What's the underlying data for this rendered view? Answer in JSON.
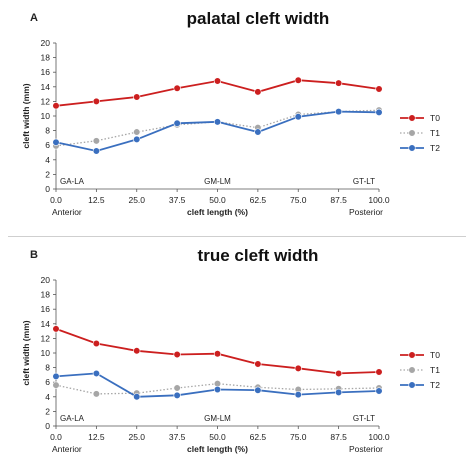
{
  "chart_data": [
    {
      "type": "line",
      "panel_letter": "A",
      "title": "palatal cleft width",
      "xlabel": "cleft length (%)",
      "ylabel": "cleft width (mm)",
      "x": [
        0.0,
        12.5,
        25.0,
        37.5,
        50.0,
        62.5,
        75.0,
        87.5,
        100.0
      ],
      "x_tick_labels": [
        "0.0",
        "12.5",
        "25.0",
        "37.5",
        "50.0",
        "62.5",
        "75.0",
        "87.5",
        "100.0"
      ],
      "ylim": [
        0,
        20
      ],
      "y_ticks": [
        "0",
        "2",
        "4",
        "6",
        "8",
        "10",
        "12",
        "14",
        "16",
        "18",
        "20"
      ],
      "grid": false,
      "legend": "right",
      "series": [
        {
          "name": "T0",
          "color": "#cc1f1f",
          "style": "solid",
          "values": [
            11.4,
            12.0,
            12.6,
            13.8,
            14.8,
            13.3,
            14.9,
            14.5,
            13.7
          ]
        },
        {
          "name": "T1",
          "color": "#a6a6a6",
          "style": "dotted",
          "values": [
            5.9,
            6.6,
            7.8,
            8.8,
            9.2,
            8.4,
            10.2,
            10.6,
            10.8
          ]
        },
        {
          "name": "T2",
          "color": "#3a6fbf",
          "style": "solid",
          "values": [
            6.4,
            5.2,
            6.8,
            9.0,
            9.2,
            7.8,
            9.9,
            10.6,
            10.5
          ]
        }
      ],
      "annotations": [
        "GA-LA",
        "GM-LM",
        "GT-LT"
      ],
      "anterior_label": "Anterior",
      "posterior_label": "Posterior"
    },
    {
      "type": "line",
      "panel_letter": "B",
      "title": "true cleft width",
      "xlabel": "cleft length (%)",
      "ylabel": "cleft width (mm)",
      "x": [
        0.0,
        12.5,
        25.0,
        37.5,
        50.0,
        62.5,
        75.0,
        87.5,
        100.0
      ],
      "x_tick_labels": [
        "0.0",
        "12.5",
        "25.0",
        "37.5",
        "50.0",
        "62.5",
        "75.0",
        "87.5",
        "100.0"
      ],
      "ylim": [
        0,
        20
      ],
      "y_ticks": [
        "0",
        "2",
        "4",
        "6",
        "8",
        "10",
        "12",
        "14",
        "16",
        "18",
        "20"
      ],
      "grid": false,
      "legend": "right",
      "series": [
        {
          "name": "T0",
          "color": "#cc1f1f",
          "style": "solid",
          "values": [
            13.3,
            11.3,
            10.3,
            9.8,
            9.9,
            8.5,
            7.9,
            7.2,
            7.4
          ]
        },
        {
          "name": "T1",
          "color": "#a6a6a6",
          "style": "dotted",
          "values": [
            5.6,
            4.4,
            4.5,
            5.2,
            5.8,
            5.3,
            5.0,
            5.1,
            5.2
          ]
        },
        {
          "name": "T2",
          "color": "#3a6fbf",
          "style": "solid",
          "values": [
            6.8,
            7.2,
            4.0,
            4.2,
            5.0,
            4.9,
            4.3,
            4.6,
            4.8
          ]
        }
      ],
      "annotations": [
        "GA-LA",
        "GM-LM",
        "GT-LT"
      ],
      "anterior_label": "Anterior",
      "posterior_label": "Posterior"
    }
  ]
}
